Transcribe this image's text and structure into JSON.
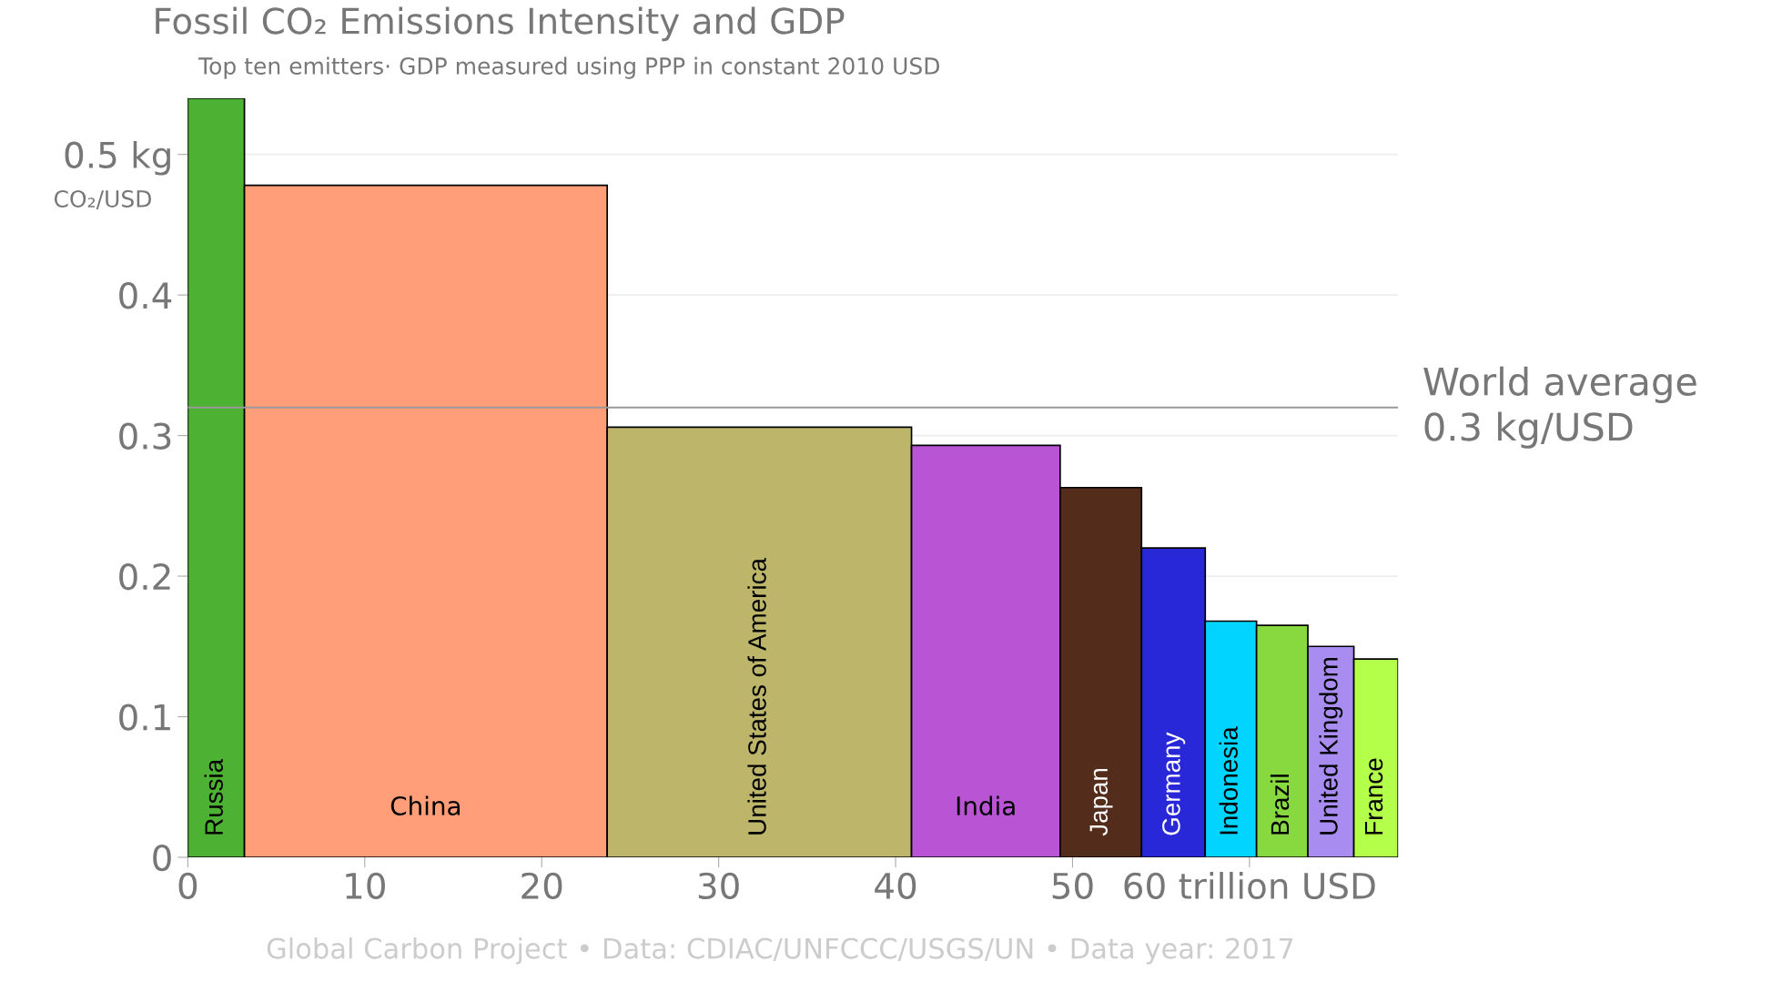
{
  "chart_data": {
    "type": "histogram",
    "title": "Fossil CO₂ Emissions Intensity and GDP",
    "subtitle": "Top ten emitters· GDP measured using PPP in constant 2010 USD",
    "ylabel": "CO₂/USD",
    "categories": [
      "Russia",
      "China",
      "United States of America",
      "India",
      "Japan",
      "Germany",
      "Indonesia",
      "Brazil",
      "United Kingdom",
      "France"
    ],
    "bins": [
      0,
      3.2,
      23.7,
      40.9,
      49.3,
      53.9,
      57.5,
      60.4,
      63.3,
      65.9,
      68.4
    ],
    "values": [
      0.54,
      0.478,
      0.306,
      0.293,
      0.263,
      0.22,
      0.168,
      0.165,
      0.15,
      0.141
    ],
    "colors": [
      "#4db133",
      "#ff9e78",
      "#bdb66a",
      "#b955d4",
      "#532c1c",
      "#2828d8",
      "#00d4ff",
      "#88d840",
      "#a88cf0",
      "#b4ff4a"
    ],
    "xlim": [
      0,
      68.4
    ],
    "ylim": [
      0,
      0.54
    ],
    "xticks": [
      0,
      10,
      20,
      30,
      40,
      50,
      {
        "value": 60,
        "label": "60 trillion USD"
      }
    ],
    "yticks": [
      0,
      0.1,
      0.2,
      0.3,
      0.4,
      {
        "value": 0.5,
        "label": "0.5 kg"
      }
    ],
    "ref_lines": [
      {
        "axis": "y",
        "value": 0.32,
        "label": "World average\n0.3 kg/USD",
        "color": "#999999"
      }
    ],
    "grid": "y",
    "annotations": [
      "Global Carbon Project • Data: CDIAC/UNFCCC/USGS/UN • Data year: 2017"
    ]
  }
}
